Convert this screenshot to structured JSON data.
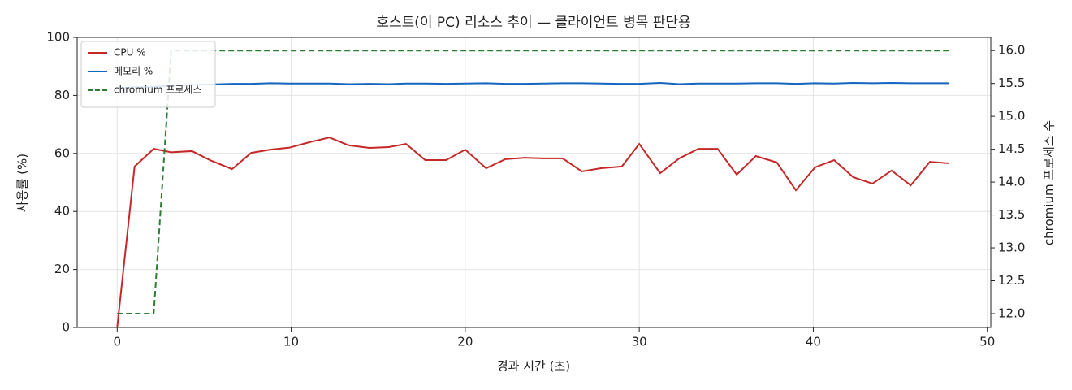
{
  "chart_data": {
    "type": "line",
    "title": "호스트(이 PC) 리소스 추이 — 클라이언트 병목 판단용",
    "x_label": "경과 시간 (초)",
    "y_label": "사용률 (%)",
    "y2_label": "chromium 프로세스 수",
    "x": [
      0,
      1.0,
      2.1,
      3.1,
      4.3,
      5.4,
      6.6,
      7.7,
      8.8,
      9.9,
      11.0,
      12.2,
      13.3,
      14.5,
      15.6,
      16.6,
      17.7,
      18.9,
      20.0,
      21.2,
      22.3,
      23.4,
      24.5,
      25.6,
      26.7,
      27.8,
      29.0,
      30.0,
      31.2,
      32.3,
      33.4,
      34.5,
      35.6,
      36.7,
      37.9,
      39.0,
      40.1,
      41.2,
      42.3,
      43.4,
      44.5,
      45.6,
      46.7,
      47.8
    ],
    "series": [
      {
        "name": "CPU %",
        "color": "#c62828",
        "linestyle": "solid",
        "axis": "y",
        "values": [
          0,
          55.5,
          61.6,
          60.4,
          60.8,
          57.5,
          54.6,
          60.2,
          61.3,
          62.0,
          63.8,
          65.5,
          62.8,
          61.9,
          62.2,
          63.3,
          57.7,
          57.7,
          61.3,
          54.9,
          58.0,
          58.5,
          58.3,
          58.3,
          53.8,
          54.9,
          55.5,
          63.3,
          53.2,
          58.3,
          61.6,
          61.6,
          52.7,
          59.1,
          56.9,
          47.3,
          55.2,
          57.7,
          51.8,
          49.6,
          54.1,
          49.0,
          57.1,
          56.6
        ]
      },
      {
        "name": "메모리 %",
        "color": "#1565c0",
        "linestyle": "solid",
        "axis": "y",
        "values": [
          82.5,
          82.8,
          83.0,
          83.3,
          83.6,
          83.8,
          84.0,
          84.0,
          84.2,
          84.1,
          84.1,
          84.1,
          83.9,
          84.0,
          83.9,
          84.1,
          84.1,
          84.0,
          84.1,
          84.2,
          84.0,
          84.0,
          84.1,
          84.2,
          84.2,
          84.1,
          84.0,
          84.0,
          84.3,
          83.9,
          84.1,
          84.1,
          84.1,
          84.2,
          84.2,
          84.0,
          84.2,
          84.1,
          84.3,
          84.2,
          84.3,
          84.2,
          84.2,
          84.2
        ]
      },
      {
        "name": "chromium 프로세스",
        "color": "#2e7d32",
        "linestyle": "dashed",
        "axis": "y2",
        "values": [
          12,
          12,
          12,
          16,
          16,
          16,
          16,
          16,
          16,
          16,
          16,
          16,
          16,
          16,
          16,
          16,
          16,
          16,
          16,
          16,
          16,
          16,
          16,
          16,
          16,
          16,
          16,
          16,
          16,
          16,
          16,
          16,
          16,
          16,
          16,
          16,
          16,
          16,
          16,
          16,
          16,
          16,
          16,
          16
        ]
      }
    ],
    "xlim": [
      -2.3,
      50.2
    ],
    "xticks": [
      0,
      10,
      20,
      30,
      40,
      50
    ],
    "ylim": [
      0,
      100
    ],
    "yticks": [
      0,
      20,
      40,
      60,
      80,
      100
    ],
    "y2lim": [
      11.79,
      16.2
    ],
    "y2ticks": [
      {
        "value": 12,
        "label": "12.0"
      },
      {
        "value": 12.5,
        "label": "12.5"
      },
      {
        "value": 13,
        "label": "13.0"
      },
      {
        "value": 13.5,
        "label": "13.5"
      },
      {
        "value": 14,
        "label": "14.0"
      },
      {
        "value": 14.5,
        "label": "14.5"
      },
      {
        "value": 15,
        "label": "15.0"
      },
      {
        "value": 15.5,
        "label": "15.5"
      },
      {
        "value": 16,
        "label": "16.0"
      }
    ],
    "grid": true,
    "legend": "upper left"
  }
}
